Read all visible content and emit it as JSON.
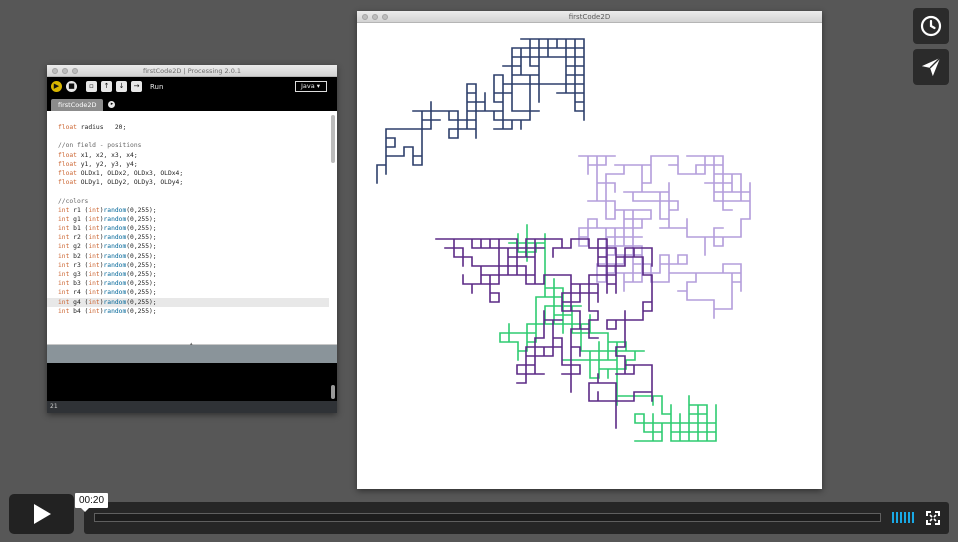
{
  "ide": {
    "title": "firstCode2D | Processing 2.0.1",
    "toolbar": {
      "run_label": "Run",
      "mode": "Java"
    },
    "active_tab": "firstCode2D",
    "code_lines": [
      {
        "type": "float",
        "text": " radius   20;"
      },
      {
        "type": "",
        "text": ""
      },
      {
        "type": "comment",
        "text": "//on field - positions"
      },
      {
        "type": "float",
        "text": " x1, x2, x3, x4;"
      },
      {
        "type": "float",
        "text": " y1, y2, y3, y4;"
      },
      {
        "type": "float",
        "text": " OLDx1, OLDx2, OLDx3, OLDx4;"
      },
      {
        "type": "float",
        "text": " OLDy1, OLDy2, OLDy3, OLDy4;"
      },
      {
        "type": "",
        "text": ""
      },
      {
        "type": "comment",
        "text": "//colors"
      },
      {
        "type": "int",
        "text": " r1 (int)random(0,255);"
      },
      {
        "type": "int",
        "text": " g1 (int)random(0,255);"
      },
      {
        "type": "int",
        "text": " b1 (int)random(0,255);"
      },
      {
        "type": "int",
        "text": " r2 (int)random(0,255);"
      },
      {
        "type": "int",
        "text": " g2 (int)random(0,255);"
      },
      {
        "type": "int",
        "text": " b2 (int)random(0,255);"
      },
      {
        "type": "int",
        "text": " r3 (int)random(0,255);"
      },
      {
        "type": "int",
        "text": " g3 (int)random(0,255);"
      },
      {
        "type": "int",
        "text": " b3 (int)random(0,255);"
      },
      {
        "type": "int",
        "text": " r4 (int)random(0,255);"
      },
      {
        "type": "int",
        "text": " g4 (int)random(0,255);"
      },
      {
        "type": "int",
        "text": " b4 (int)random(0,255);"
      }
    ],
    "highlighted_line": 19,
    "status_line": "21"
  },
  "sketch": {
    "title": "firstCode2D",
    "walk_colors": [
      "#2d3f6b",
      "#2ecc71",
      "#b39ddb",
      "#5b2a86"
    ]
  },
  "player": {
    "current_time": "00:20",
    "progress": 0.0,
    "volume_bars": 6
  },
  "colors": {
    "background": "#575757",
    "accent": "#19a9e5",
    "keyword": "#cc6633",
    "function": "#006699",
    "comment": "#666666"
  }
}
